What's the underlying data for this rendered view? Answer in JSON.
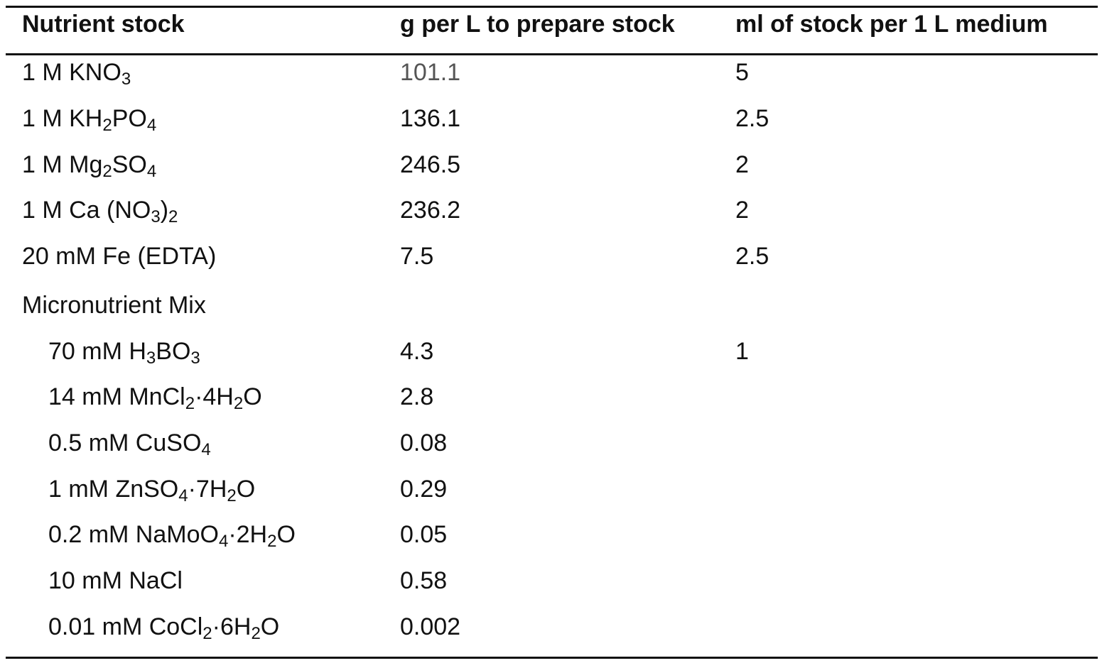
{
  "table": {
    "headers": {
      "nutrient": "Nutrient stock",
      "grams": "g per L to prepare stock",
      "ml": "ml of stock per 1 L medium"
    },
    "rows": [
      {
        "parts": [
          "1 M KNO",
          "3"
        ],
        "grams": "101.1",
        "ml": "5"
      },
      {
        "parts": [
          "1 M KH",
          "2",
          "PO",
          "4"
        ],
        "grams": "136.1",
        "ml": "2.5"
      },
      {
        "parts": [
          "1 M Mg",
          "2",
          "SO",
          "4"
        ],
        "grams": "246.5",
        "ml": "2"
      },
      {
        "parts": [
          "1 M Ca (NO",
          "3",
          ")",
          "2"
        ],
        "grams": "236.2",
        "ml": "2"
      },
      {
        "parts": [
          "20 mM Fe (EDTA)"
        ],
        "grams": "7.5",
        "ml": "2.5"
      },
      {
        "parts": [
          "Micronutrient Mix"
        ],
        "grams": "",
        "ml": ""
      },
      {
        "parts": [
          "70 mM H",
          "3",
          "BO",
          "3"
        ],
        "grams": "4.3",
        "ml": "1"
      },
      {
        "parts": [
          "14 mM MnCl",
          "2",
          "·4H",
          "2",
          "O"
        ],
        "grams": "2.8",
        "ml": ""
      },
      {
        "parts": [
          "0.5 mM CuSO",
          "4"
        ],
        "grams": "0.08",
        "ml": ""
      },
      {
        "parts": [
          "1 mM ZnSO",
          "4",
          "·7H",
          "2",
          "O"
        ],
        "grams": "0.29",
        "ml": ""
      },
      {
        "parts": [
          "0.2 mM NaMoO",
          "4",
          "·2H",
          "2",
          "O"
        ],
        "grams": "0.05",
        "ml": ""
      },
      {
        "parts": [
          "10 mM NaCl"
        ],
        "grams": "0.58",
        "ml": ""
      },
      {
        "parts": [
          "0.01 mM CoCl",
          "2",
          "·6H",
          "2",
          "O"
        ],
        "grams": "0.002",
        "ml": ""
      }
    ]
  }
}
